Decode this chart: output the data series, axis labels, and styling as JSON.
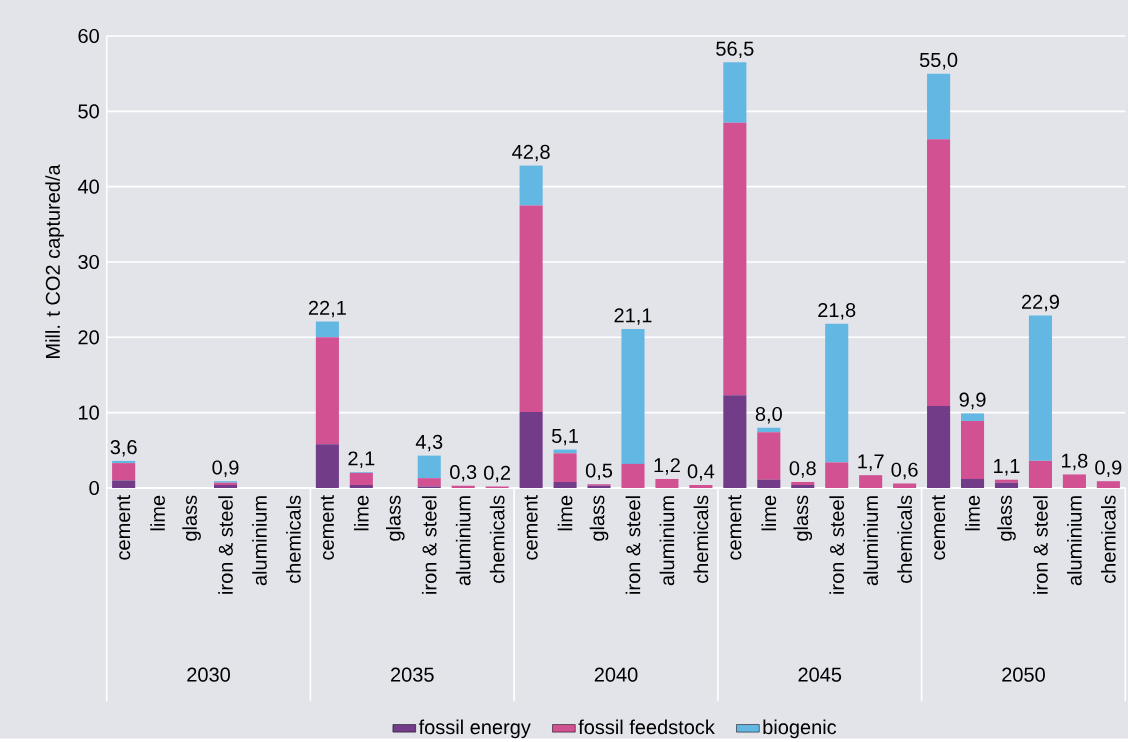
{
  "chart_data": {
    "type": "bar",
    "stacked": true,
    "ylabel": "Mill. t CO2 captured/a",
    "categories": [
      "cement",
      "lime",
      "glass",
      "iron & steel",
      "aluminium",
      "chemicals",
      "cement",
      "lime",
      "glass",
      "iron & steel",
      "aluminium",
      "chemicals",
      "cement",
      "lime",
      "glass",
      "iron & steel",
      "aluminium",
      "chemicals",
      "cement",
      "lime",
      "glass",
      "iron & steel",
      "aluminium",
      "chemicals",
      "cement",
      "lime",
      "glass",
      "iron & steel",
      "aluminium",
      "chemicals"
    ],
    "series": [
      {
        "name": "fossil energy",
        "color": "#723c88",
        "values": [
          1.0,
          0,
          0,
          0.4,
          0,
          0,
          5.8,
          0.4,
          0,
          0.2,
          0,
          0,
          10.1,
          0.8,
          0.3,
          0,
          0,
          0,
          12.3,
          1.1,
          0.4,
          0,
          0,
          0,
          10.9,
          1.2,
          0.7,
          0,
          0,
          0
        ]
      },
      {
        "name": "fossil feedstock",
        "color": "#d15192",
        "values": [
          2.3,
          0,
          0,
          0.3,
          0,
          0,
          14.2,
          1.6,
          0,
          1.1,
          0.3,
          0.2,
          27.4,
          3.8,
          0.2,
          3.2,
          1.2,
          0.4,
          36.2,
          6.3,
          0.4,
          3.4,
          1.7,
          0.6,
          35.4,
          7.7,
          0.4,
          3.6,
          1.8,
          0.9
        ]
      },
      {
        "name": "biogenic",
        "color": "#63b7e3",
        "values": [
          0.3,
          0,
          0,
          0.2,
          0,
          0,
          2.1,
          0.1,
          0,
          3.0,
          0,
          0,
          5.3,
          0.5,
          0,
          17.9,
          0,
          0,
          8.0,
          0.6,
          0,
          18.4,
          0,
          0,
          8.7,
          1.0,
          0,
          19.3,
          0,
          0
        ]
      }
    ],
    "totals": [
      "3,6",
      null,
      null,
      "0,9",
      null,
      null,
      "22,1",
      "2,1",
      null,
      "4,3",
      "0,3",
      "0,2",
      "42,8",
      "5,1",
      "0,5",
      "21,1",
      "1,2",
      "0,4",
      "56,5",
      "8,0",
      "0,8",
      "21,8",
      "1,7",
      "0,6",
      "55,0",
      "9,9",
      "1,1",
      "22,9",
      "1,8",
      "0,9"
    ],
    "annotations": [
      "2030",
      "2035",
      "2040",
      "2045",
      "2050"
    ],
    "ylim": [
      0,
      60
    ],
    "yticks": [
      0,
      10,
      20,
      30,
      40,
      50,
      60
    ],
    "grid": "y",
    "legend": "bottom"
  }
}
